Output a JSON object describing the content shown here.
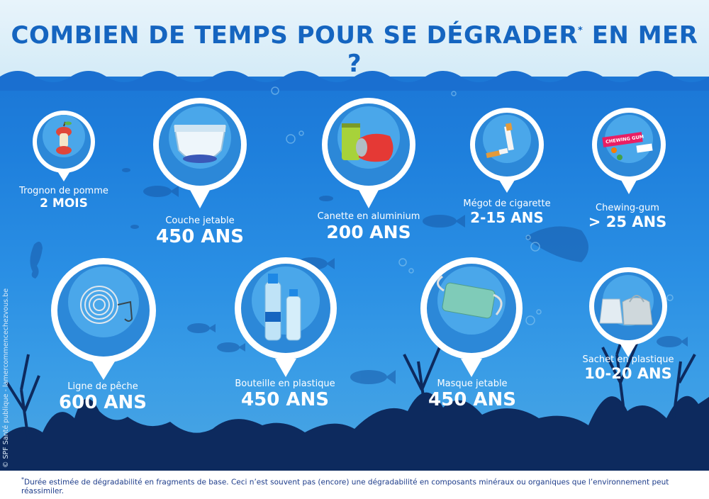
{
  "title": {
    "main": "COMBIEN DE TEMPS POUR SE DÉGRADER",
    "mark": "*",
    "end": "EN MER ?"
  },
  "items": [
    {
      "label": "Trognon de pomme",
      "value": "2 MOIS"
    },
    {
      "label": "Couche jetable",
      "value": "450 ANS"
    },
    {
      "label": "Canette en aluminium",
      "value": "200 ANS"
    },
    {
      "label": "Mégot de cigarette",
      "value": "2-15 ANS"
    },
    {
      "label": "Chewing-gum",
      "value": "> 25 ANS"
    },
    {
      "label": "Ligne de pêche",
      "value": "600 ANS"
    },
    {
      "label": "Bouteille en plastique",
      "value": "450 ANS"
    },
    {
      "label": "Masque jetable",
      "value": "450 ANS"
    },
    {
      "label": "Sachet en plastique",
      "value": "10-20 ANS"
    }
  ],
  "gum_pack_text": "CHEWING GUM",
  "footnote": {
    "mark": "*",
    "text": "Durée estimée de dégradabilité en fragments de base. Ceci n’est souvent pas (encore) une dégradabilité en composants minéraux ou organiques que l’environnement peut réassimiler."
  },
  "credit": "© SPF Santé publique - lamercommencechezvous.be",
  "colors": {
    "title": "#1565c0",
    "ocean_top": "#1a6fd0",
    "ocean_bottom": "#4fa8e2",
    "sky": "#e8f4fb",
    "seabed": "#0d2a5e",
    "footnote_text": "#1d3c8a"
  }
}
